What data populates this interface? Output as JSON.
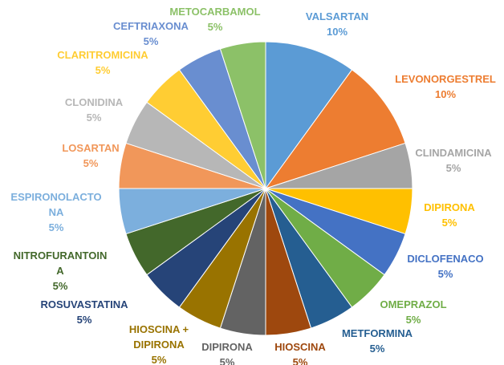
{
  "chart_data": {
    "type": "pie",
    "categories": [
      "VALSARTAN",
      "LEVONORGESTREL",
      "CLINDAMICINA",
      "DIPIRONA",
      "DICLOFENACO",
      "OMEPRAZOL",
      "METFORMINA",
      "HIOSCINA",
      "DIPIRONA",
      "HIOSCINA + DIPIRONA",
      "ROSUVASTATINA",
      "NITROFURANTOINA",
      "ESPIRONOLACTONA",
      "LOSARTAN",
      "CLONIDINA",
      "CLARITROMICINA",
      "CEFTRIAXONA",
      "METOCARBAMOL"
    ],
    "values": [
      10,
      10,
      5,
      5,
      5,
      5,
      5,
      5,
      5,
      5,
      5,
      5,
      5,
      5,
      5,
      5,
      5,
      5
    ],
    "value_labels": [
      "10%",
      "10%",
      "5%",
      "5%",
      "5%",
      "5%",
      "5%",
      "5%",
      "5%",
      "5%",
      "5%",
      "5%",
      "5%",
      "5%",
      "5%",
      "5%",
      "5%",
      "5%"
    ],
    "colors": [
      "#5b9bd5",
      "#ed7d31",
      "#a5a5a5",
      "#ffc000",
      "#4472c4",
      "#70ad47",
      "#255e91",
      "#9e480e",
      "#636363",
      "#997300",
      "#264478",
      "#43682b",
      "#7cafdd",
      "#f1975a",
      "#b7b7b7",
      "#ffcd33",
      "#698ed0",
      "#8cc168"
    ]
  }
}
